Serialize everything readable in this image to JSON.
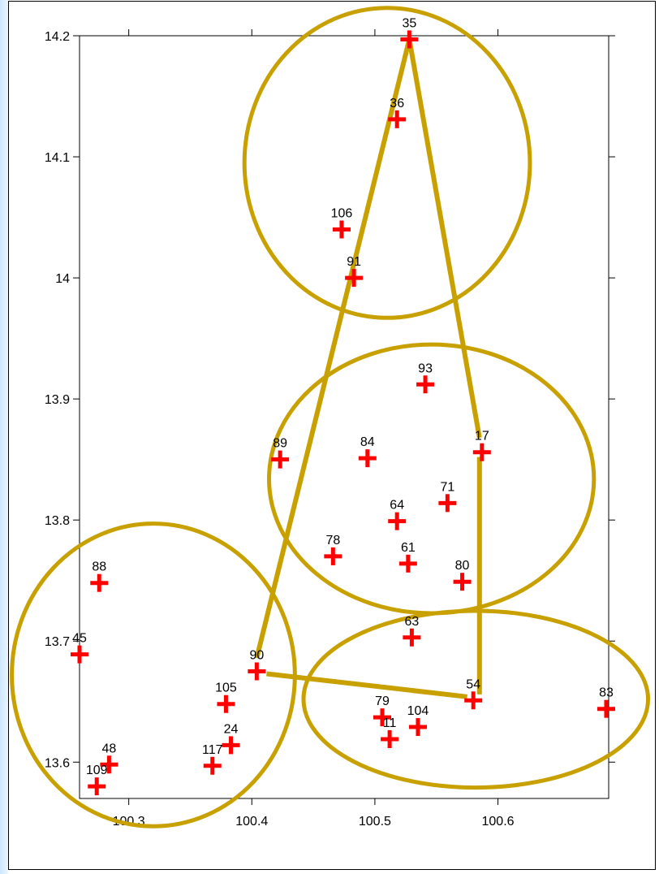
{
  "chart_data": {
    "type": "scatter",
    "title": "",
    "xlabel": "",
    "ylabel": "",
    "xlim": [
      100.26,
      100.69
    ],
    "ylim": [
      13.57,
      14.2
    ],
    "x_ticks": [
      "100.3",
      "100.4",
      "100.5",
      "100.6"
    ],
    "y_ticks": [
      "13.6",
      "13.7",
      "13.8",
      "13.9",
      "14",
      "14.1",
      "14.2"
    ],
    "x_tick_values": [
      100.3,
      100.4,
      100.5,
      100.6
    ],
    "y_tick_values": [
      13.6,
      13.7,
      13.8,
      13.9,
      14.0,
      14.1,
      14.2
    ],
    "marker": "plus",
    "marker_color": "#ff0000",
    "points": [
      {
        "label": "35",
        "x": 100.528,
        "y": 14.197
      },
      {
        "label": "36",
        "x": 100.518,
        "y": 14.131
      },
      {
        "label": "106",
        "x": 100.473,
        "y": 14.04
      },
      {
        "label": "91",
        "x": 100.483,
        "y": 14.0
      },
      {
        "label": "93",
        "x": 100.541,
        "y": 13.912
      },
      {
        "label": "89",
        "x": 100.423,
        "y": 13.85
      },
      {
        "label": "84",
        "x": 100.494,
        "y": 13.851
      },
      {
        "label": "17",
        "x": 100.587,
        "y": 13.856
      },
      {
        "label": "71",
        "x": 100.559,
        "y": 13.814
      },
      {
        "label": "64",
        "x": 100.518,
        "y": 13.799
      },
      {
        "label": "78",
        "x": 100.466,
        "y": 13.77
      },
      {
        "label": "61",
        "x": 100.527,
        "y": 13.764
      },
      {
        "label": "80",
        "x": 100.571,
        "y": 13.749
      },
      {
        "label": "88",
        "x": 100.276,
        "y": 13.748
      },
      {
        "label": "63",
        "x": 100.53,
        "y": 13.703
      },
      {
        "label": "45",
        "x": 100.26,
        "y": 13.689
      },
      {
        "label": "90",
        "x": 100.404,
        "y": 13.675
      },
      {
        "label": "105",
        "x": 100.379,
        "y": 13.648
      },
      {
        "label": "54",
        "x": 100.58,
        "y": 13.651
      },
      {
        "label": "83",
        "x": 100.688,
        "y": 13.644
      },
      {
        "label": "79",
        "x": 100.506,
        "y": 13.637
      },
      {
        "label": "104",
        "x": 100.535,
        "y": 13.629
      },
      {
        "label": "11",
        "x": 100.512,
        "y": 13.619
      },
      {
        "label": "24",
        "x": 100.383,
        "y": 13.614
      },
      {
        "label": "117",
        "x": 100.368,
        "y": 13.597
      },
      {
        "label": "48",
        "x": 100.284,
        "y": 13.598
      },
      {
        "label": "109",
        "x": 100.274,
        "y": 13.58
      }
    ],
    "overlay_color": "#c8a000",
    "ellipses": [
      {
        "cx": 100.51,
        "cy": 14.095,
        "rx": 0.116,
        "ry": 0.128
      },
      {
        "cx": 100.546,
        "cy": 13.834,
        "rx": 0.132,
        "ry": 0.111
      },
      {
        "cx": 100.32,
        "cy": 13.672,
        "rx": 0.115,
        "ry": 0.125
      },
      {
        "cx": 100.582,
        "cy": 13.652,
        "rx": 0.14,
        "ry": 0.073
      }
    ],
    "links": [
      [
        [
          100.528,
          14.197
        ],
        [
          100.404,
          13.686
        ]
      ],
      [
        [
          100.528,
          14.197
        ],
        [
          100.585,
          13.868
        ]
      ],
      [
        [
          100.585,
          13.852
        ],
        [
          100.585,
          13.656
        ]
      ],
      [
        [
          100.412,
          13.673
        ],
        [
          100.575,
          13.654
        ]
      ]
    ]
  }
}
